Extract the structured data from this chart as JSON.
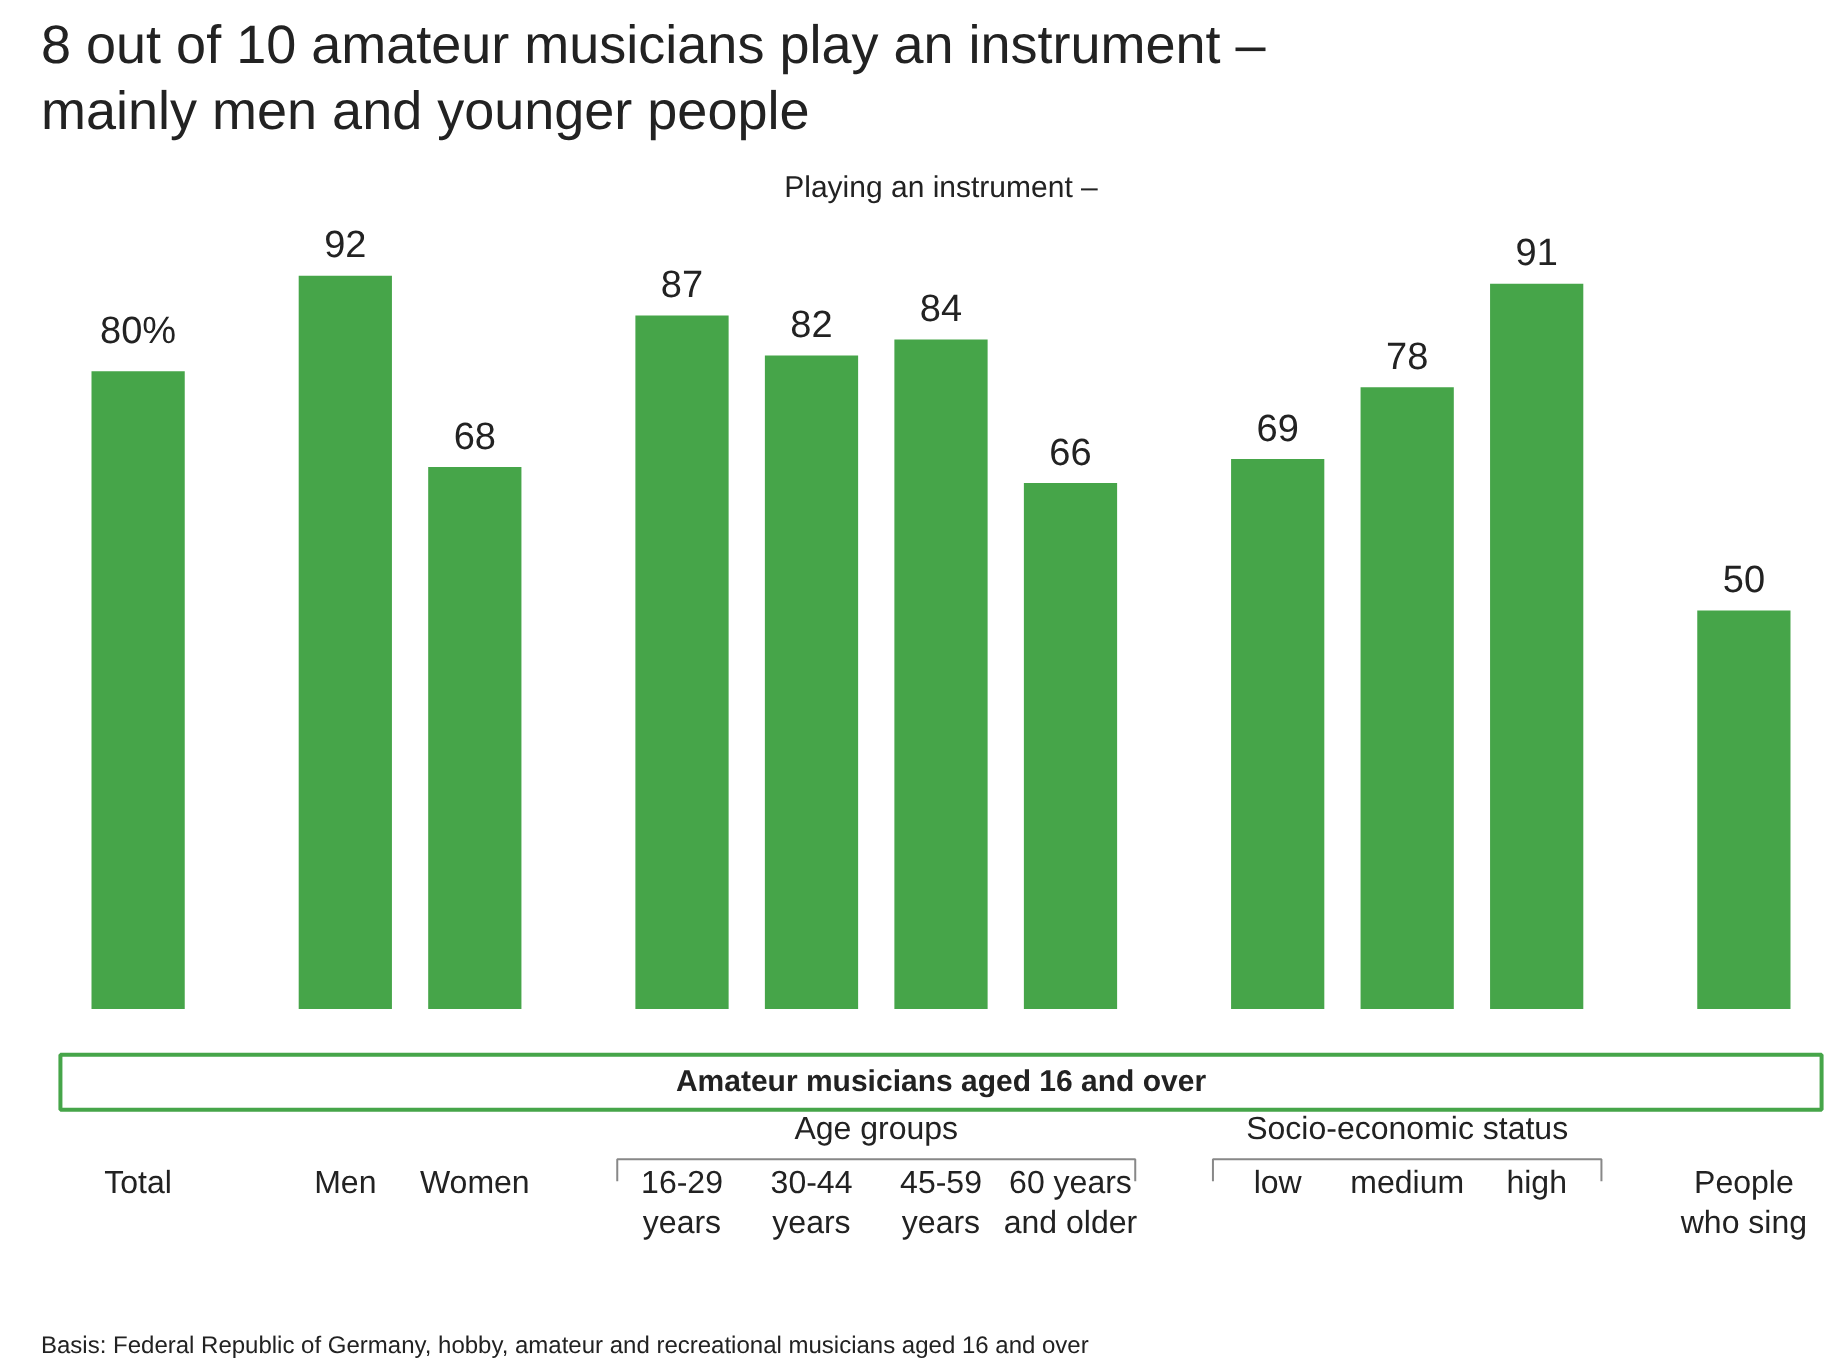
{
  "chart_data": {
    "type": "bar",
    "title": "8 out of 10 amateur musicians play an instrument – mainly men and younger people",
    "subtitle": "Playing an instrument –",
    "categories": [
      "Total",
      "Men",
      "Women",
      "16-29 years",
      "30-44 years",
      "45-59 years",
      "60 years and older",
      "low",
      "medium",
      "high",
      "People who sing"
    ],
    "values": [
      80,
      92,
      68,
      87,
      82,
      84,
      66,
      69,
      78,
      91,
      50
    ],
    "value_labels": [
      "80%",
      "92",
      "68",
      "87",
      "82",
      "84",
      "66",
      "69",
      "78",
      "91",
      "50"
    ],
    "color": "#46a549",
    "grid": false,
    "annotations": [
      "Amateur musicians aged 16 and over",
      "Age groups",
      "Socio-economic status",
      "Basis: Federal Republic of Germany, hobby, amateur and recreational musicians aged 16 and over"
    ]
  }
}
